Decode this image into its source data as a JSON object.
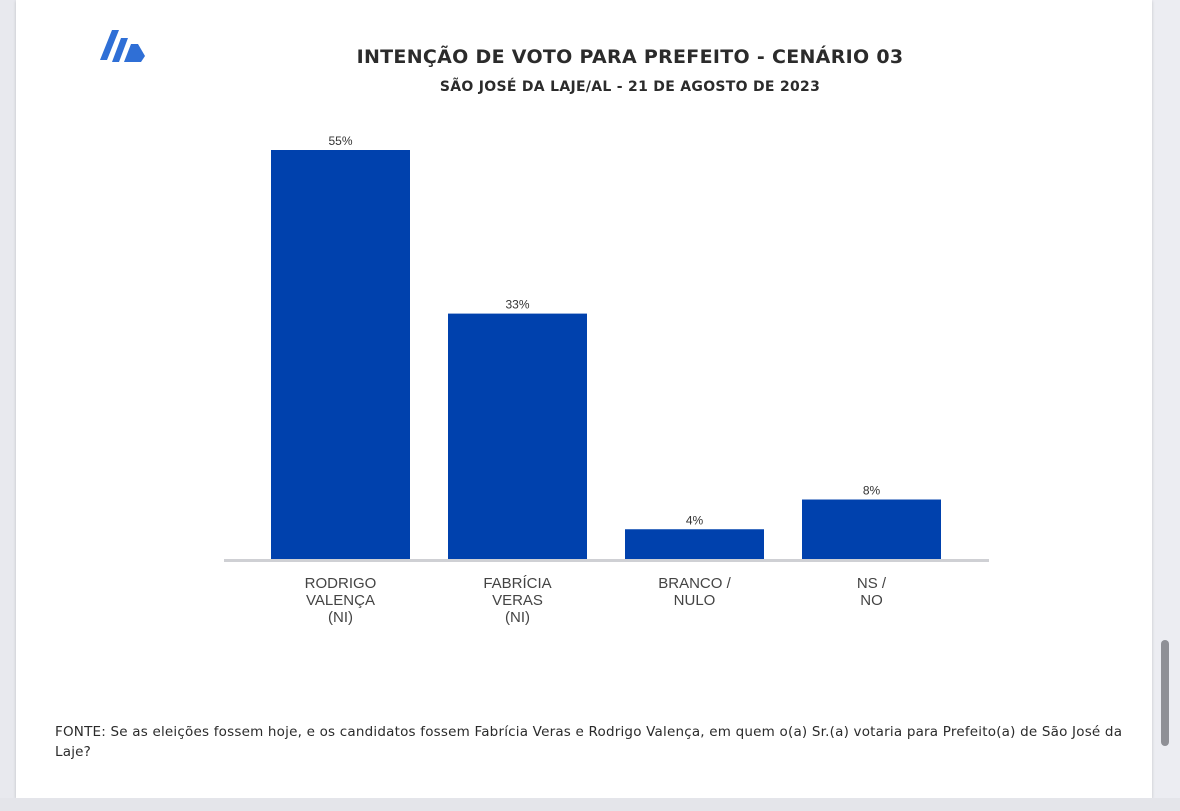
{
  "header": {
    "title": "INTENÇÃO DE VOTO PARA PREFEITO - CENÁRIO 03",
    "subtitle": "SÃO JOSÉ DA LAJE/AL - 21 DE AGOSTO DE 2023"
  },
  "chart_data": {
    "type": "bar",
    "title": "INTENÇÃO DE VOTO PARA PREFEITO - CENÁRIO 03",
    "subtitle": "SÃO JOSÉ DA LAJE/AL - 21 DE AGOSTO DE 2023",
    "categories": [
      [
        "RODRIGO",
        "VALENÇA",
        "(NI)"
      ],
      [
        "FABRÍCIA",
        "VERAS",
        "(NI)"
      ],
      [
        "BRANCO /",
        "NULO"
      ],
      [
        "NS /",
        "NO"
      ]
    ],
    "values": [
      55,
      33,
      4,
      8
    ],
    "value_labels": [
      "55%",
      "33%",
      "4%",
      "8%"
    ],
    "ylim": [
      0,
      55
    ],
    "grid": false,
    "legend": "none",
    "bar_color": "#0041ad",
    "axis_color": "#cfd0d4"
  },
  "footnote": "FONTE: Se as eleições fossem hoje, e os candidatos fossem Fabrícia Veras e Rodrigo Valença, em quem o(a) Sr.(a) votaria para Prefeito(a) de São José da Laje?",
  "colors": {
    "accent": "#0041ad",
    "logo": "#2f6fd6",
    "text": "#2b2b2b"
  },
  "icons": {
    "logo": "brand-logo-icon",
    "scrollbar": "scrollbar-thumb"
  }
}
